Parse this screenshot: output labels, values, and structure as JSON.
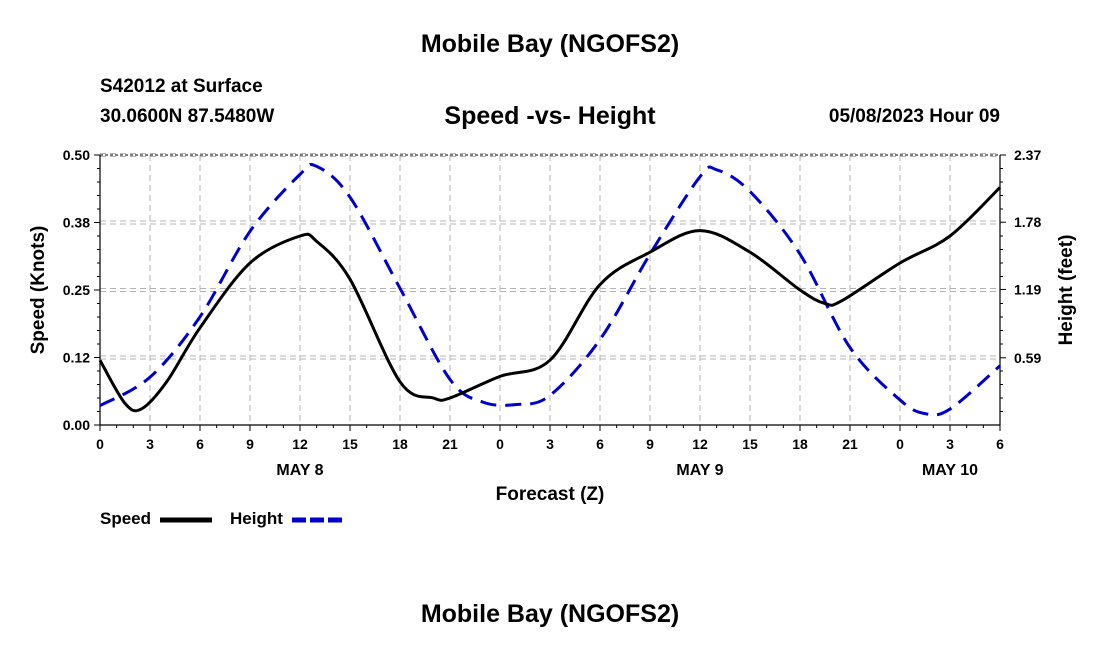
{
  "header": {
    "title": "Mobile Bay (NGOFS2)",
    "station": "S42012 at Surface",
    "coords": "30.0600N  87.5480W",
    "subtitle": "Speed -vs- Height",
    "datetime": "05/08/2023 Hour 09"
  },
  "footer": {
    "title": "Mobile Bay (NGOFS2)"
  },
  "chart_data": {
    "type": "line",
    "xlabel": "Forecast (Z)",
    "ylabel_left": "Speed (Knots)",
    "ylabel_right": "Height (feet)",
    "x_range_hours": [
      0,
      54
    ],
    "x_tick_hours": [
      0,
      3,
      6,
      9,
      12,
      15,
      18,
      21,
      24,
      27,
      30,
      33,
      36,
      39,
      42,
      45,
      48,
      51,
      54
    ],
    "x_tick_labels": [
      "0",
      "3",
      "6",
      "9",
      "12",
      "15",
      "18",
      "21",
      "0",
      "3",
      "6",
      "9",
      "12",
      "15",
      "18",
      "21",
      "0",
      "3",
      "6"
    ],
    "day_labels": [
      {
        "hour": 12,
        "label": "MAY 8"
      },
      {
        "hour": 36,
        "label": "MAY 9"
      },
      {
        "hour": 51,
        "label": "MAY 10"
      }
    ],
    "y_left": {
      "range": [
        0,
        0.5
      ],
      "ticks": [
        0,
        0.125,
        0.25,
        0.375,
        0.5
      ],
      "tick_labels": [
        "0.00",
        "0.12",
        "0.25",
        "0.38",
        "0.50"
      ]
    },
    "y_right": {
      "range": [
        0,
        2.37
      ],
      "ticks": [
        0.59,
        1.19,
        1.78,
        2.37
      ],
      "tick_labels": [
        "0.59",
        "1.19",
        "1.78",
        "2.37"
      ]
    },
    "grid": true,
    "legend_position": "bottom-left",
    "series": [
      {
        "name": "Speed",
        "axis": "left",
        "color": "#000000",
        "style": "solid",
        "points": [
          [
            0,
            0.12
          ],
          [
            1.5,
            0.04
          ],
          [
            2.5,
            0.03
          ],
          [
            4,
            0.08
          ],
          [
            6,
            0.18
          ],
          [
            9,
            0.3
          ],
          [
            12,
            0.35
          ],
          [
            13,
            0.34
          ],
          [
            15,
            0.27
          ],
          [
            18,
            0.08
          ],
          [
            20,
            0.05
          ],
          [
            21,
            0.05
          ],
          [
            24,
            0.09
          ],
          [
            27,
            0.12
          ],
          [
            30,
            0.26
          ],
          [
            33,
            0.32
          ],
          [
            36,
            0.36
          ],
          [
            39,
            0.32
          ],
          [
            42,
            0.25
          ],
          [
            43.5,
            0.225
          ],
          [
            44.5,
            0.23
          ],
          [
            48,
            0.3
          ],
          [
            51,
            0.35
          ],
          [
            54,
            0.44
          ]
        ]
      },
      {
        "name": "Height",
        "axis": "right",
        "color": "#0000cc",
        "style": "dashed",
        "points": [
          [
            0,
            0.17
          ],
          [
            3,
            0.42
          ],
          [
            6,
            0.95
          ],
          [
            9,
            1.7
          ],
          [
            12,
            2.2
          ],
          [
            13,
            2.27
          ],
          [
            15,
            2.0
          ],
          [
            18,
            1.2
          ],
          [
            21,
            0.4
          ],
          [
            23,
            0.2
          ],
          [
            25,
            0.18
          ],
          [
            27,
            0.26
          ],
          [
            30,
            0.75
          ],
          [
            33,
            1.5
          ],
          [
            36,
            2.18
          ],
          [
            37,
            2.24
          ],
          [
            39,
            2.05
          ],
          [
            42,
            1.5
          ],
          [
            45,
            0.68
          ],
          [
            48,
            0.22
          ],
          [
            49.5,
            0.1
          ],
          [
            51,
            0.14
          ],
          [
            54,
            0.52
          ]
        ]
      }
    ]
  }
}
